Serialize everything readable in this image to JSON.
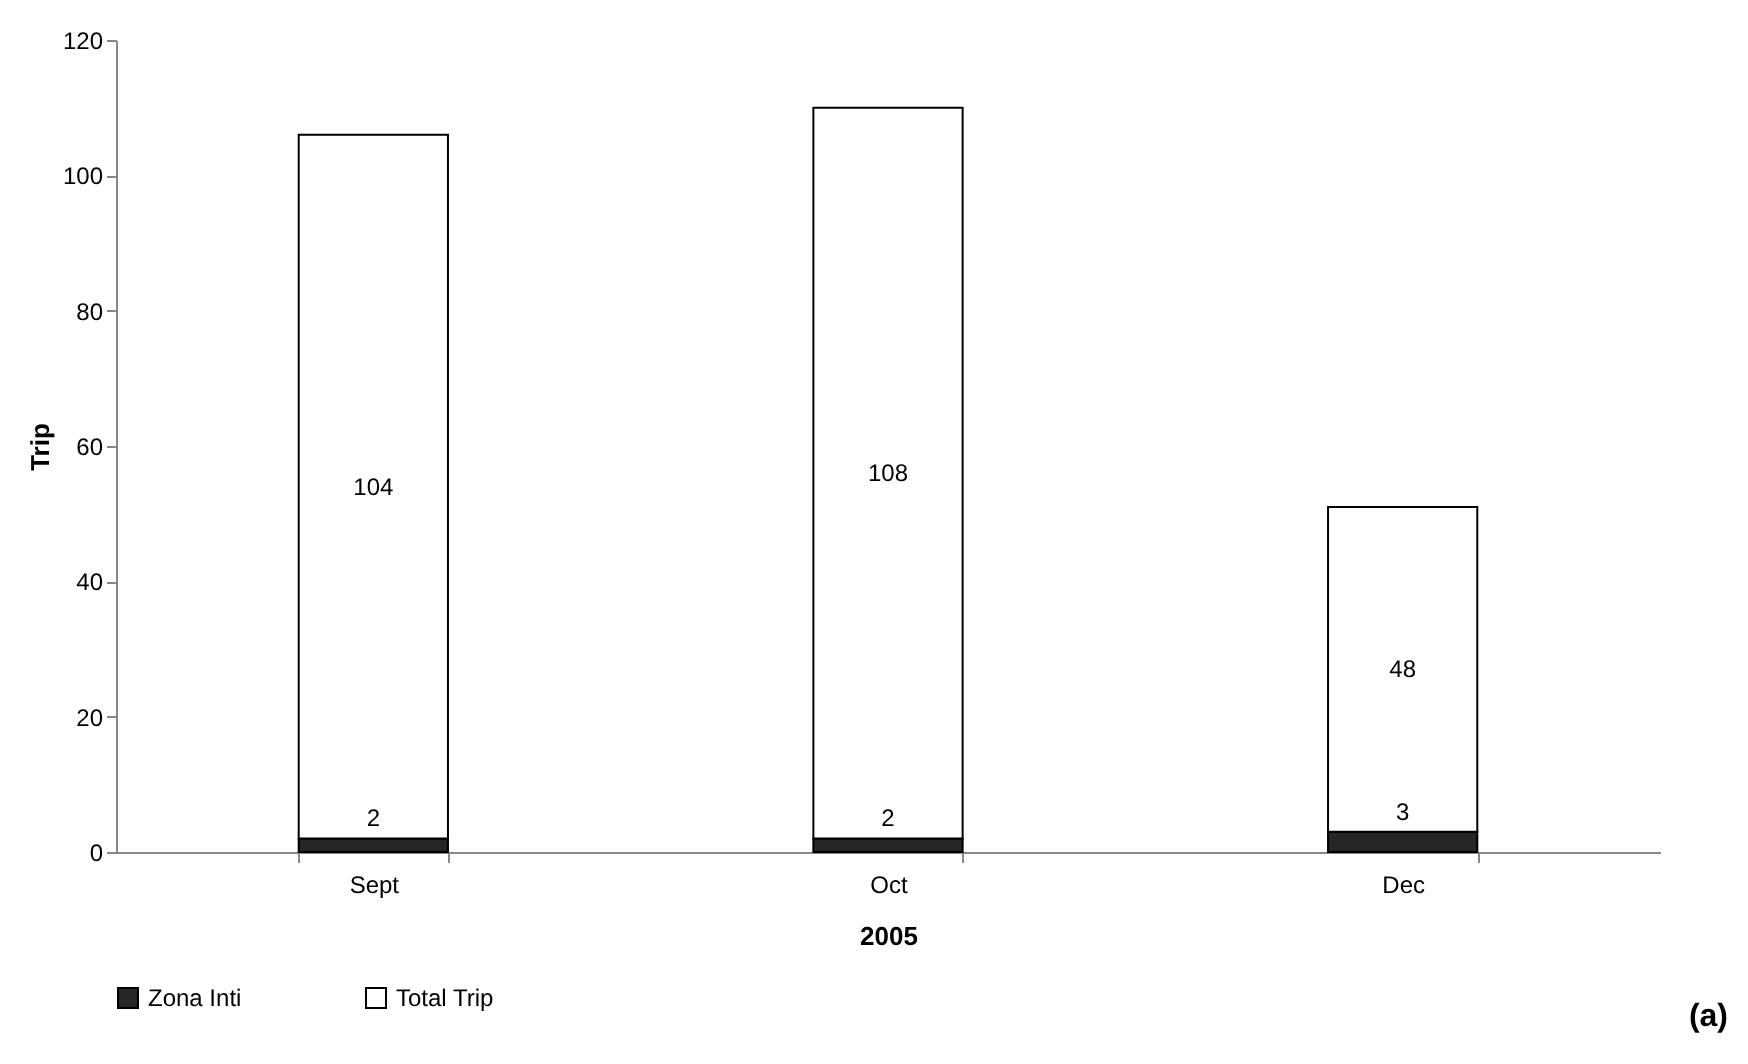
{
  "chart_data": {
    "type": "bar",
    "stacked": true,
    "xlabel": "2005",
    "ylabel": "Trip",
    "categories": [
      "Sept",
      "Oct",
      "Dec"
    ],
    "series": [
      {
        "name": "Zona Inti",
        "color": "#262626",
        "values": [
          2,
          2,
          3
        ]
      },
      {
        "name": "Total Trip",
        "color": "#ffffff",
        "values": [
          104,
          108,
          48
        ]
      }
    ],
    "ylim": [
      0,
      120
    ],
    "yticks": [
      0,
      20,
      40,
      60,
      80,
      100,
      120
    ],
    "data_labels": true,
    "grid": false,
    "legend": "bottom",
    "annotations": [
      "(a)"
    ]
  }
}
